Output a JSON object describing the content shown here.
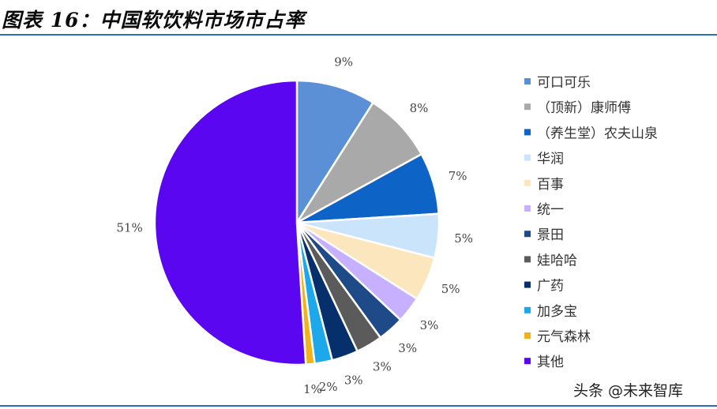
{
  "header": {
    "title": "图表 16：中国软饮料市场市占率"
  },
  "watermark": "头条 @未来智库",
  "chart_data": {
    "type": "pie",
    "title": "图表 16：中国软饮料市场市占率",
    "legend_position": "right",
    "categories": [
      "可口可乐",
      "（顶新）康师傅",
      "（养生堂）农夫山泉",
      "华润",
      "百事",
      "统一",
      "景田",
      "娃哈哈",
      "广药",
      "加多宝",
      "元气森林",
      "其他"
    ],
    "values": [
      9,
      8,
      7,
      5,
      5,
      3,
      3,
      3,
      3,
      2,
      1,
      51
    ],
    "labels": [
      "9%",
      "8%",
      "7%",
      "5%",
      "5%",
      "3%",
      "3%",
      "3%",
      "3%",
      "2%",
      "1%",
      "51%"
    ],
    "colors": [
      "#5b8fd6",
      "#a9a9a9",
      "#0e63c7",
      "#c9e4fb",
      "#fbe6bd",
      "#c7b0ff",
      "#1e4a87",
      "#5b5b5b",
      "#06306b",
      "#1ea8ec",
      "#f2b21b",
      "#5a06f0"
    ]
  }
}
